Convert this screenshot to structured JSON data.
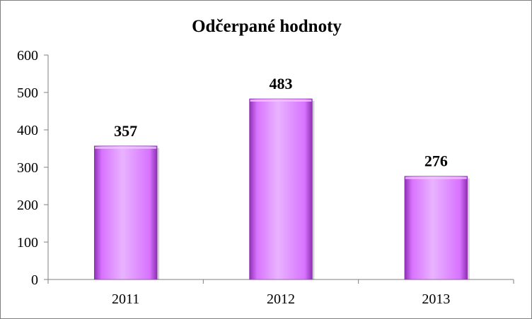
{
  "chart_data": {
    "type": "bar",
    "title": "Odčerpané  hodnoty",
    "categories": [
      "2011",
      "2012",
      "2013"
    ],
    "values": [
      357,
      483,
      276
    ],
    "data_labels": [
      "357",
      "483",
      "276"
    ],
    "ylim": [
      0,
      600
    ],
    "yticks": [
      "0",
      "100",
      "200",
      "300",
      "400",
      "500",
      "600"
    ],
    "xlabel": "",
    "ylabel": "",
    "grid": false,
    "legend": "none",
    "colors": {
      "bar_fill": "#d873ff",
      "bar_edge": "#8e2fb5",
      "bar_highlight": "#e9b3ff",
      "axis": "#7f7f7f"
    }
  }
}
